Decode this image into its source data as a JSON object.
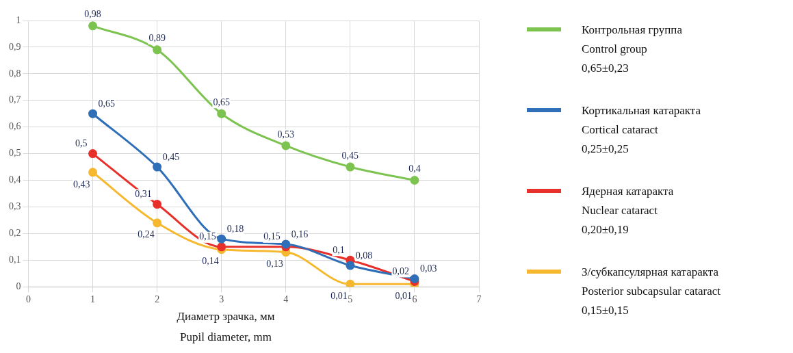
{
  "chart_data": {
    "type": "line",
    "xlabel": "Диаметр зрачка, мм\nPupil diameter, mm",
    "x": [
      1,
      2,
      3,
      4,
      5,
      6
    ],
    "series": [
      {
        "name": "Контрольная группа\nControl group\n0,65±0,23",
        "color": "#7cc34f",
        "values": [
          0.98,
          0.89,
          0.65,
          0.53,
          0.45,
          0.4
        ],
        "value_labels": [
          "0,98",
          "0,89",
          "0,65",
          "0,53",
          "0,45",
          "0,4"
        ]
      },
      {
        "name": "Кортикальная катаракта\nCortical cataract\n0,25±0,25",
        "color": "#2f6fb8",
        "values": [
          0.65,
          0.45,
          0.18,
          0.16,
          0.08,
          0.03
        ],
        "value_labels": [
          "0,65",
          "0,45",
          "0,18",
          "0,16",
          "0,08",
          "0,03"
        ]
      },
      {
        "name": "Ядерная катаракта\nNuclear cataract\n0,20±0,19",
        "color": "#e8302a",
        "values": [
          0.5,
          0.31,
          0.15,
          0.15,
          0.1,
          0.02
        ],
        "value_labels": [
          "0,5",
          "0,31",
          "0,15",
          "0,15",
          "0,1",
          "0,02"
        ]
      },
      {
        "name": "З/субкапсулярная катаракта\nPosterior subcapsular cataract\n0,15±0,15",
        "color": "#f5b82e",
        "values": [
          0.43,
          0.24,
          0.14,
          0.13,
          0.01,
          0.01
        ],
        "value_labels": [
          "0,43",
          "0,24",
          "0,14",
          "0,13",
          "0,01",
          "0,01"
        ]
      }
    ],
    "xlim": [
      0,
      7
    ],
    "xticks": [
      0,
      1,
      2,
      3,
      4,
      5,
      6,
      7
    ],
    "ylim": [
      0,
      1
    ],
    "yticks": [
      0,
      {
        "value": 0.1,
        "label": "0,1"
      },
      {
        "value": 0.2,
        "label": "0,2"
      },
      {
        "value": 0.3,
        "label": "0,3"
      },
      {
        "value": 0.4,
        "label": "0,4"
      },
      {
        "value": 0.5,
        "label": "0,5"
      },
      {
        "value": 0.6,
        "label": "0,6"
      },
      {
        "value": 0.7,
        "label": "0,7"
      },
      {
        "value": 0.8,
        "label": "0,8"
      },
      {
        "value": 0.9,
        "label": "0,9"
      },
      1
    ],
    "grid": true,
    "legend": "right",
    "marker": "circle",
    "line_style": "solid"
  }
}
